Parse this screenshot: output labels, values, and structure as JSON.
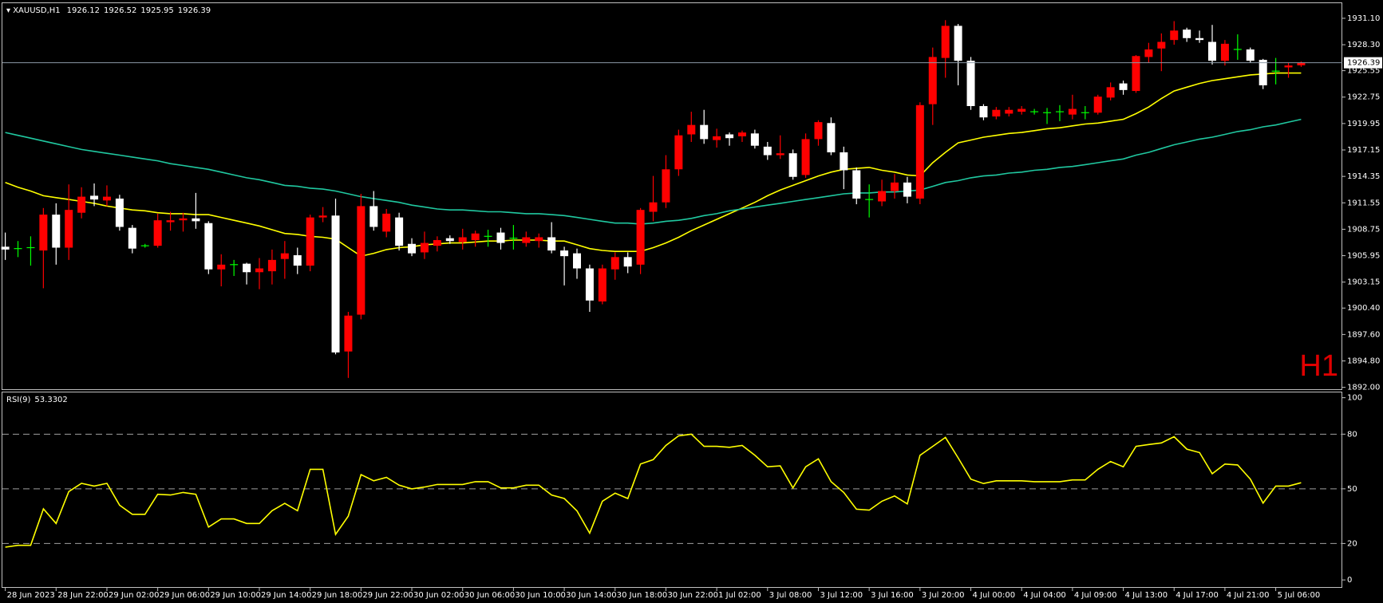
{
  "chart_data": [
    {
      "type": "candlestick",
      "title": "XAUUSD,H1",
      "annotation": "H1",
      "categories": [
        "28 Jun 2023",
        null,
        null,
        null,
        "28 Jun 22:00",
        null,
        null,
        null,
        "29 Jun 02:00",
        null,
        null,
        null,
        "29 Jun 06:00",
        null,
        null,
        null,
        "29 Jun 10:00",
        null,
        null,
        null,
        "29 Jun 14:00",
        null,
        null,
        null,
        "29 Jun 18:00",
        null,
        null,
        null,
        "29 Jun 22:00",
        null,
        null,
        null,
        "30 Jun 02:00",
        null,
        null,
        null,
        "30 Jun 06:00",
        null,
        null,
        null,
        "30 Jun 10:00",
        null,
        null,
        null,
        "30 Jun 14:00",
        null,
        null,
        null,
        "30 Jun 18:00",
        null,
        null,
        null,
        "30 Jun 22:00",
        null,
        null,
        null,
        "1 Jul 02:00",
        null,
        null,
        null,
        "3 Jul 08:00",
        null,
        null,
        null,
        "3 Jul 12:00",
        null,
        null,
        null,
        "3 Jul 16:00",
        null,
        null,
        null,
        "3 Jul 20:00",
        null,
        null,
        null,
        "4 Jul 00:00",
        null,
        null,
        null,
        "4 Jul 04:00",
        null,
        null,
        null,
        "4 Jul 09:00",
        null,
        null,
        null,
        "4 Jul 13:00",
        null,
        null,
        null,
        "4 Jul 17:00",
        null,
        null,
        null,
        "4 Jul 21:00",
        null,
        null,
        null,
        "5 Jul 06:00",
        null,
        null
      ],
      "open": [
        1906.9,
        1906.7,
        1906.8,
        1906.5,
        1910.3,
        1906.8,
        1910.5,
        1912.3,
        1911.8,
        1912.0,
        1908.9,
        1907.0,
        1907.0,
        1909.5,
        1909.7,
        1909.9,
        1909.4,
        1904.5,
        1905.0,
        1905.1,
        1904.2,
        1904.3,
        1905.6,
        1906.0,
        1904.9,
        1910.0,
        1910.2,
        1895.8,
        1899.7,
        1911.2,
        1908.5,
        1910.0,
        1907.2,
        1906.3,
        1907.0,
        1907.8,
        1907.4,
        1907.6,
        1908.0,
        1908.4,
        1907.8,
        1907.3,
        1907.5,
        1907.9,
        1906.5,
        1906.2,
        1904.6,
        1901.1,
        1904.5,
        1905.8,
        1905.0,
        1910.6,
        1911.6,
        1915.1,
        1918.8,
        1919.8,
        1918.2,
        1918.8,
        1918.6,
        1918.9,
        1917.5,
        1916.6,
        1916.8,
        1914.5,
        1918.3,
        1920.0,
        1916.9,
        1915.0,
        1911.9,
        1911.7,
        1912.8,
        1913.7,
        1912.0,
        1922.0,
        1926.9,
        1930.3,
        1926.6,
        1921.8,
        1920.7,
        1921.0,
        1921.2,
        1921.2,
        1921.1,
        1921.2,
        1920.9,
        1921.1,
        1921.1,
        1922.7,
        1924.2,
        1923.4,
        1927.0,
        1927.9,
        1928.8,
        1929.9,
        1929.0,
        1928.6,
        1926.6,
        1927.8,
        1927.8,
        1926.7,
        1925.5,
        1925.9,
        1926.12
      ],
      "high": [
        1908.4,
        1907.5,
        1908.0,
        1911.0,
        1911.5,
        1913.5,
        1913.2,
        1913.6,
        1913.4,
        1912.4,
        1909.2,
        1907.2,
        1910.4,
        1910.6,
        1910.5,
        1912.6,
        1909.6,
        1906.1,
        1905.5,
        1905.2,
        1905.7,
        1906.6,
        1907.5,
        1906.8,
        1910.3,
        1911.1,
        1912.0,
        1900.0,
        1912.5,
        1912.8,
        1910.9,
        1910.5,
        1907.8,
        1908.5,
        1908.0,
        1908.1,
        1908.8,
        1908.6,
        1908.7,
        1908.9,
        1909.2,
        1908.5,
        1908.3,
        1909.5,
        1906.9,
        1906.7,
        1905.0,
        1905.0,
        1906.3,
        1906.3,
        1911.0,
        1914.4,
        1916.6,
        1919.3,
        1921.2,
        1921.4,
        1919.4,
        1919.0,
        1919.2,
        1919.3,
        1918.0,
        1918.7,
        1917.2,
        1918.9,
        1920.3,
        1920.6,
        1917.5,
        1915.3,
        1913.5,
        1914.0,
        1914.6,
        1914.3,
        1922.2,
        1928.0,
        1930.9,
        1930.5,
        1927.0,
        1922.0,
        1921.7,
        1921.7,
        1921.8,
        1921.5,
        1921.6,
        1921.9,
        1923.0,
        1921.8,
        1923.0,
        1924.3,
        1924.5,
        1927.2,
        1928.5,
        1929.5,
        1930.8,
        1930.1,
        1929.8,
        1930.4,
        1928.8,
        1929.4,
        1928.0,
        1926.8,
        1926.9,
        1926.4,
        1926.52
      ],
      "low": [
        1905.5,
        1905.8,
        1904.9,
        1902.5,
        1905.0,
        1905.5,
        1909.9,
        1911.2,
        1911.2,
        1908.6,
        1906.2,
        1906.8,
        1906.8,
        1908.6,
        1908.5,
        1908.8,
        1904.0,
        1902.7,
        1903.8,
        1902.9,
        1902.4,
        1902.9,
        1903.5,
        1904.0,
        1904.3,
        1909.5,
        1895.5,
        1893.0,
        1899.2,
        1908.6,
        1907.9,
        1906.5,
        1905.9,
        1905.6,
        1906.4,
        1907.2,
        1906.6,
        1906.9,
        1906.9,
        1906.6,
        1906.6,
        1906.9,
        1906.8,
        1906.2,
        1902.8,
        1903.5,
        1900.0,
        1900.8,
        1903.4,
        1904.1,
        1904.0,
        1909.6,
        1911.0,
        1914.4,
        1918.0,
        1917.8,
        1917.4,
        1917.6,
        1918.0,
        1917.3,
        1916.1,
        1916.2,
        1914.0,
        1914.2,
        1917.6,
        1916.6,
        1913.0,
        1911.4,
        1910.0,
        1911.2,
        1912.0,
        1911.5,
        1911.4,
        1919.8,
        1924.8,
        1924.0,
        1921.4,
        1920.3,
        1920.4,
        1920.7,
        1920.9,
        1920.9,
        1919.9,
        1920.2,
        1920.4,
        1920.4,
        1920.9,
        1922.4,
        1923.0,
        1923.2,
        1926.4,
        1925.5,
        1928.3,
        1928.6,
        1928.5,
        1926.2,
        1926.1,
        1926.7,
        1926.4,
        1923.6,
        1924.1,
        1924.8,
        1925.95
      ],
      "close": [
        1906.6,
        1906.7,
        1906.8,
        1910.3,
        1906.8,
        1910.8,
        1912.2,
        1911.9,
        1912.2,
        1909.0,
        1906.7,
        1907.0,
        1909.7,
        1909.7,
        1909.9,
        1909.6,
        1904.5,
        1905.0,
        1905.0,
        1904.2,
        1904.6,
        1905.5,
        1906.2,
        1904.9,
        1910.0,
        1910.2,
        1895.7,
        1899.6,
        1911.2,
        1909.0,
        1910.4,
        1907.0,
        1906.2,
        1907.3,
        1907.6,
        1907.5,
        1907.9,
        1908.3,
        1908.0,
        1907.3,
        1907.8,
        1907.9,
        1907.9,
        1906.5,
        1905.9,
        1904.6,
        1901.2,
        1904.6,
        1905.8,
        1904.8,
        1910.8,
        1911.6,
        1915.1,
        1918.7,
        1919.8,
        1918.3,
        1918.6,
        1918.4,
        1919.0,
        1917.6,
        1916.6,
        1916.8,
        1914.3,
        1918.3,
        1920.1,
        1916.9,
        1915.0,
        1912.0,
        1911.9,
        1912.8,
        1913.7,
        1912.2,
        1921.9,
        1927.0,
        1930.3,
        1926.6,
        1921.8,
        1920.6,
        1921.4,
        1921.4,
        1921.5,
        1921.2,
        1921.1,
        1921.2,
        1921.5,
        1921.1,
        1922.8,
        1923.8,
        1923.5,
        1927.1,
        1927.8,
        1928.6,
        1929.8,
        1929.0,
        1928.8,
        1926.6,
        1928.4,
        1927.8,
        1926.6,
        1924.0,
        1925.5,
        1926.1,
        1926.39
      ],
      "up_color": "#ff0000",
      "down_color": "#ffffff",
      "doji_color": "#00ff00",
      "bid_color": "#8c9aa6",
      "series": [
        {
          "color": "#ffff00",
          "values": [
            1913.7,
            1913.2,
            1912.8,
            1912.3,
            1912.1,
            1911.9,
            1911.7,
            1911.5,
            1911.2,
            1911.0,
            1910.8,
            1910.7,
            1910.5,
            1910.4,
            1910.4,
            1910.3,
            1910.3,
            1910.0,
            1909.7,
            1909.4,
            1909.1,
            1908.7,
            1908.3,
            1908.2,
            1908.0,
            1907.9,
            1907.7,
            1906.8,
            1905.9,
            1906.2,
            1906.6,
            1906.8,
            1906.9,
            1907.1,
            1907.2,
            1907.3,
            1907.3,
            1907.4,
            1907.5,
            1907.5,
            1907.6,
            1907.6,
            1907.6,
            1907.5,
            1907.5,
            1907.1,
            1906.7,
            1906.5,
            1906.4,
            1906.4,
            1906.4,
            1906.8,
            1907.3,
            1907.9,
            1908.6,
            1909.2,
            1909.8,
            1910.4,
            1911.0,
            1911.6,
            1912.3,
            1912.9,
            1913.4,
            1913.9,
            1914.4,
            1914.8,
            1915.1,
            1915.2,
            1915.3,
            1915.0,
            1914.8,
            1914.5,
            1914.4,
            1915.8,
            1916.9,
            1917.9,
            1918.2,
            1918.5,
            1918.7,
            1918.9,
            1919.0,
            1919.2,
            1919.4,
            1919.5,
            1919.7,
            1919.9,
            1920.0,
            1920.2,
            1920.4,
            1921.0,
            1921.7,
            1922.6,
            1923.4,
            1923.8,
            1924.2,
            1924.5,
            1924.7,
            1924.9,
            1925.1,
            1925.2,
            1925.3,
            1925.3,
            1925.3
          ]
        },
        {
          "color": "#20c8a0",
          "values": [
            1919.0,
            1918.7,
            1918.4,
            1918.1,
            1917.8,
            1917.5,
            1917.2,
            1917.0,
            1916.8,
            1916.6,
            1916.4,
            1916.2,
            1916.0,
            1915.7,
            1915.5,
            1915.3,
            1915.1,
            1914.8,
            1914.5,
            1914.2,
            1914.0,
            1913.7,
            1913.4,
            1913.3,
            1913.1,
            1913.0,
            1912.8,
            1912.5,
            1912.2,
            1912.0,
            1911.8,
            1911.6,
            1911.3,
            1911.1,
            1910.9,
            1910.8,
            1910.8,
            1910.7,
            1910.6,
            1910.6,
            1910.5,
            1910.4,
            1910.4,
            1910.3,
            1910.2,
            1910.0,
            1909.8,
            1909.6,
            1909.4,
            1909.4,
            1909.3,
            1909.4,
            1909.6,
            1909.7,
            1909.9,
            1910.2,
            1910.4,
            1910.7,
            1910.9,
            1911.1,
            1911.3,
            1911.5,
            1911.7,
            1911.9,
            1912.1,
            1912.3,
            1912.5,
            1912.6,
            1912.6,
            1912.7,
            1912.7,
            1912.8,
            1912.9,
            1913.3,
            1913.7,
            1913.9,
            1914.2,
            1914.4,
            1914.5,
            1914.7,
            1914.8,
            1915.0,
            1915.1,
            1915.3,
            1915.4,
            1915.6,
            1915.8,
            1916.0,
            1916.2,
            1916.6,
            1916.9,
            1917.3,
            1917.7,
            1918.0,
            1918.3,
            1918.5,
            1918.8,
            1919.1,
            1919.3,
            1919.6,
            1919.8,
            1920.1,
            1920.4
          ]
        }
      ],
      "ylim": [
        1891.8,
        1932.7
      ],
      "yticks": [
        {
          "value": 1931.1,
          "label": "1931.10"
        },
        {
          "value": 1928.3,
          "label": "1928.30"
        },
        1925.55,
        1922.75,
        1919.95,
        1917.15,
        1914.35,
        1911.55,
        1908.75,
        1905.95,
        1903.15,
        {
          "value": 1900.4,
          "label": "1900.40"
        },
        {
          "value": 1897.6,
          "label": "1897.60"
        },
        {
          "value": 1894.8,
          "label": "1894.80"
        },
        {
          "value": 1892,
          "label": "1892.00"
        }
      ],
      "grid": false
    },
    {
      "type": "line",
      "title": "RSI(9)",
      "series": [
        {
          "color": "#ffff00",
          "values": [
            18,
            19,
            19,
            39,
            31,
            48.5,
            53,
            51.5,
            53,
            41,
            36,
            36,
            47,
            46.6,
            48,
            47,
            29,
            33.5,
            33.5,
            31,
            31,
            38,
            42,
            38,
            60.7,
            60.7,
            25,
            35,
            57.8,
            54.4,
            56.3,
            52,
            50,
            51,
            52.4,
            52.4,
            52.4,
            53.9,
            53.9,
            50.5,
            50.5,
            52,
            52,
            46.6,
            44.7,
            37.9,
            25.7,
            43.2,
            47.6,
            44.7,
            63.6,
            66,
            73.8,
            79.1,
            80,
            73.3,
            73.3,
            72.8,
            73.8,
            68.4,
            62.1,
            62.6,
            50.5,
            62.1,
            66.5,
            53.9,
            48,
            38.8,
            38.3,
            43.2,
            46.1,
            41.7,
            68.4,
            73.3,
            78.2,
            67,
            55.3,
            52.9,
            54.4,
            54.4,
            54.4,
            53.9,
            53.9,
            53.9,
            54.9,
            54.9,
            60.7,
            65,
            62.1,
            73.3,
            74.3,
            75.2,
            78.6,
            71.8,
            69.9,
            58.3,
            63.6,
            63.1,
            55.3,
            42.2,
            51.5,
            51.5,
            53.3302
          ]
        }
      ],
      "levels": [
        20,
        50,
        80
      ],
      "level_color": "#a0a0a0",
      "ylim": [
        -3.9,
        102.9
      ],
      "yticks": [
        0,
        20,
        50,
        80,
        100
      ],
      "grid": false
    }
  ]
}
